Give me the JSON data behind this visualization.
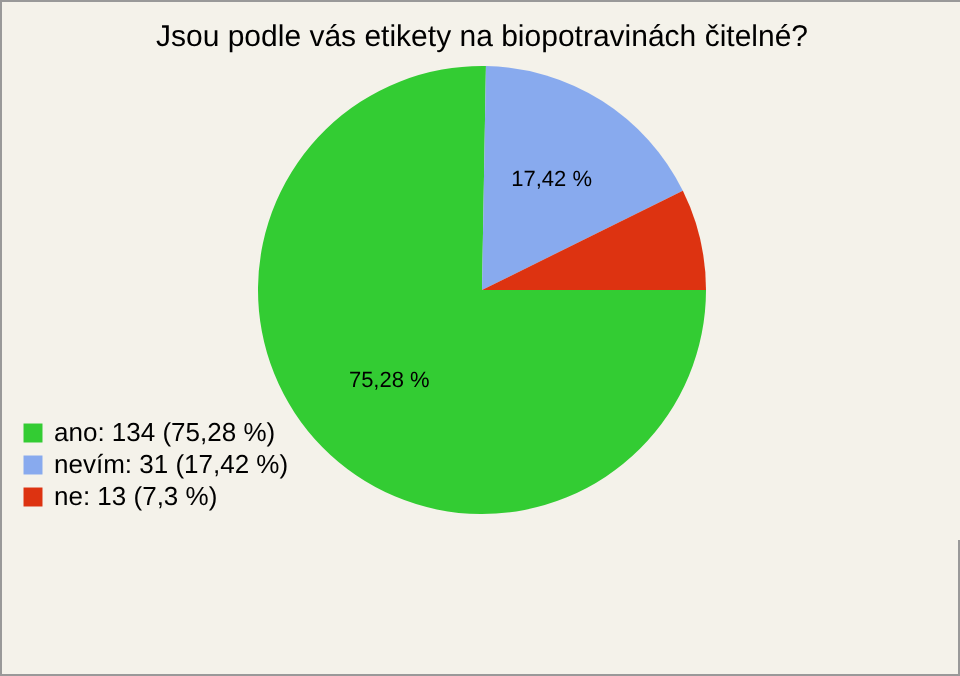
{
  "chart_data": {
    "type": "pie",
    "title": "Jsou podle vás etikety na biopotravinách čitelné?",
    "categories": [
      "ano: 134 (75,28 %)",
      "nevím: 31 (17,42 %)",
      "ne: 13 (7,3 %)"
    ],
    "values": [
      75.28,
      17.42,
      7.3
    ],
    "colors": [
      "#33cc33",
      "#88aaee",
      "#dd3311"
    ],
    "value_labels": [
      "75,28 %",
      "17,42 %",
      null
    ],
    "legend": "bottom left"
  }
}
